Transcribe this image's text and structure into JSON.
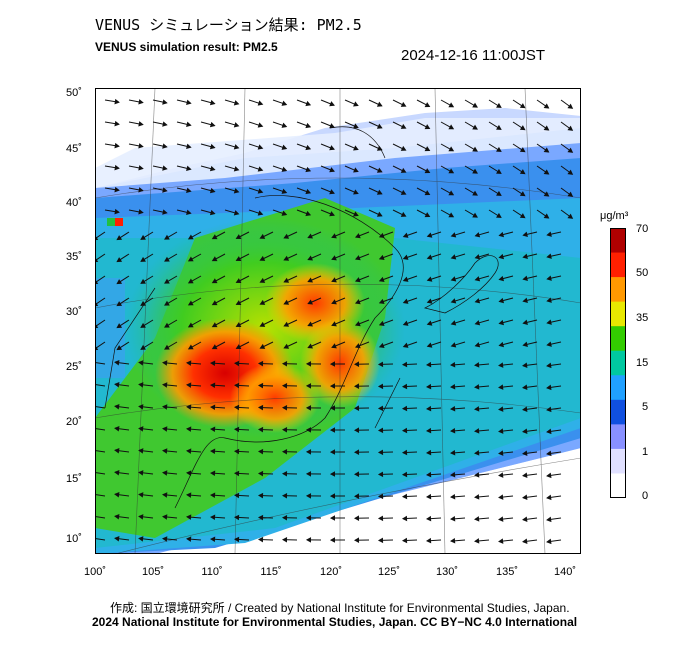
{
  "header": {
    "title_jp": "VENUS シミュレーション結果: PM2.5",
    "title_en": "VENUS simulation result: PM2.5",
    "timestamp": "2024-12-16 11:00JST"
  },
  "map": {
    "lat_labels": [
      "50˚",
      "45˚",
      "40˚",
      "35˚",
      "30˚",
      "25˚",
      "20˚",
      "15˚",
      "10˚"
    ],
    "lon_labels": [
      "100˚",
      "105˚",
      "110˚",
      "115˚",
      "120˚",
      "125˚",
      "130˚",
      "135˚",
      "140˚"
    ],
    "variable": "PM2.5",
    "lon_range": [
      100,
      141
    ],
    "lat_range": [
      9,
      51
    ]
  },
  "colorbar": {
    "unit": "μg/m³",
    "ticks": [
      "70",
      "50",
      "35",
      "15",
      "5",
      "1",
      "0"
    ],
    "colors": [
      "#b00000",
      "#ff2000",
      "#ff9900",
      "#e8e800",
      "#33cc00",
      "#00c8a0",
      "#20a0ff",
      "#1050e0",
      "#8890ff",
      "#e0e0ff",
      "#ffffff"
    ]
  },
  "footer": {
    "credit": "作成: 国立環境研究所 / Created by National Institute for Environmental Studies, Japan.",
    "copyright": "2024 National Institute for Environmental Studies, Japan. CC BY−NC 4.0 International"
  }
}
